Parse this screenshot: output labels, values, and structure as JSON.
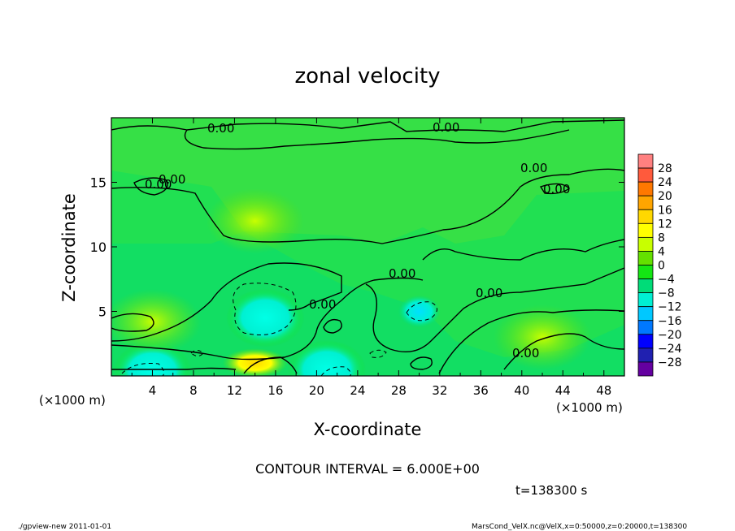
{
  "chart_data": {
    "type": "heatmap",
    "title": "zonal velocity",
    "xlabel": "X-coordinate",
    "ylabel": "Z-coordinate",
    "x_unit": "(×1000 m)",
    "y_unit": "(×1000 m)",
    "xlim": [
      0,
      50
    ],
    "ylim": [
      0,
      20
    ],
    "x_ticks": [
      "4",
      "8",
      "12",
      "16",
      "20",
      "24",
      "28",
      "32",
      "36",
      "40",
      "44",
      "48"
    ],
    "y_ticks": [
      "5",
      "10",
      "15"
    ],
    "colorbar_labels": [
      "28",
      "24",
      "20",
      "16",
      "12",
      "8",
      "4",
      "0",
      "−4",
      "−8",
      "−12",
      "−16",
      "−20",
      "−24",
      "−28"
    ],
    "colorbar_colors": [
      "#ff8080",
      "#ff5a3c",
      "#ff7800",
      "#ffa500",
      "#ffd800",
      "#ffff00",
      "#c8ff00",
      "#64e000",
      "#14e614",
      "#00dc78",
      "#00f0d2",
      "#00c8ff",
      "#0078ff",
      "#0000ff",
      "#2020b0",
      "#6400a0"
    ],
    "contour_labels": [
      "0.00",
      "0.00",
      "0.00",
      "0.00",
      "0.00",
      "0.00",
      "0.00",
      "0.00",
      "0.00",
      "0.00"
    ],
    "contour_interval": "CONTOUR INTERVAL = 6.000E+00",
    "time": "t=138300 s",
    "regions": [
      {
        "x": 15,
        "z": 4.5,
        "value": -9
      },
      {
        "x": 14,
        "z": 1,
        "value": 8
      },
      {
        "x": 21,
        "z": 0.5,
        "value": -11
      },
      {
        "x": 4,
        "z": 0.4,
        "value": -10
      },
      {
        "x": 4,
        "z": 4.2,
        "value": 4
      },
      {
        "x": 30,
        "z": 5,
        "value": -6
      },
      {
        "x": 14,
        "z": 12,
        "value": 2
      },
      {
        "x": 42,
        "z": 3,
        "value": 3
      }
    ]
  },
  "footer": {
    "left": "./gpview-new   2011-01-01",
    "right": "MarsCond_VelX.nc@VelX,x=0:50000,z=0:20000,t=138300"
  }
}
